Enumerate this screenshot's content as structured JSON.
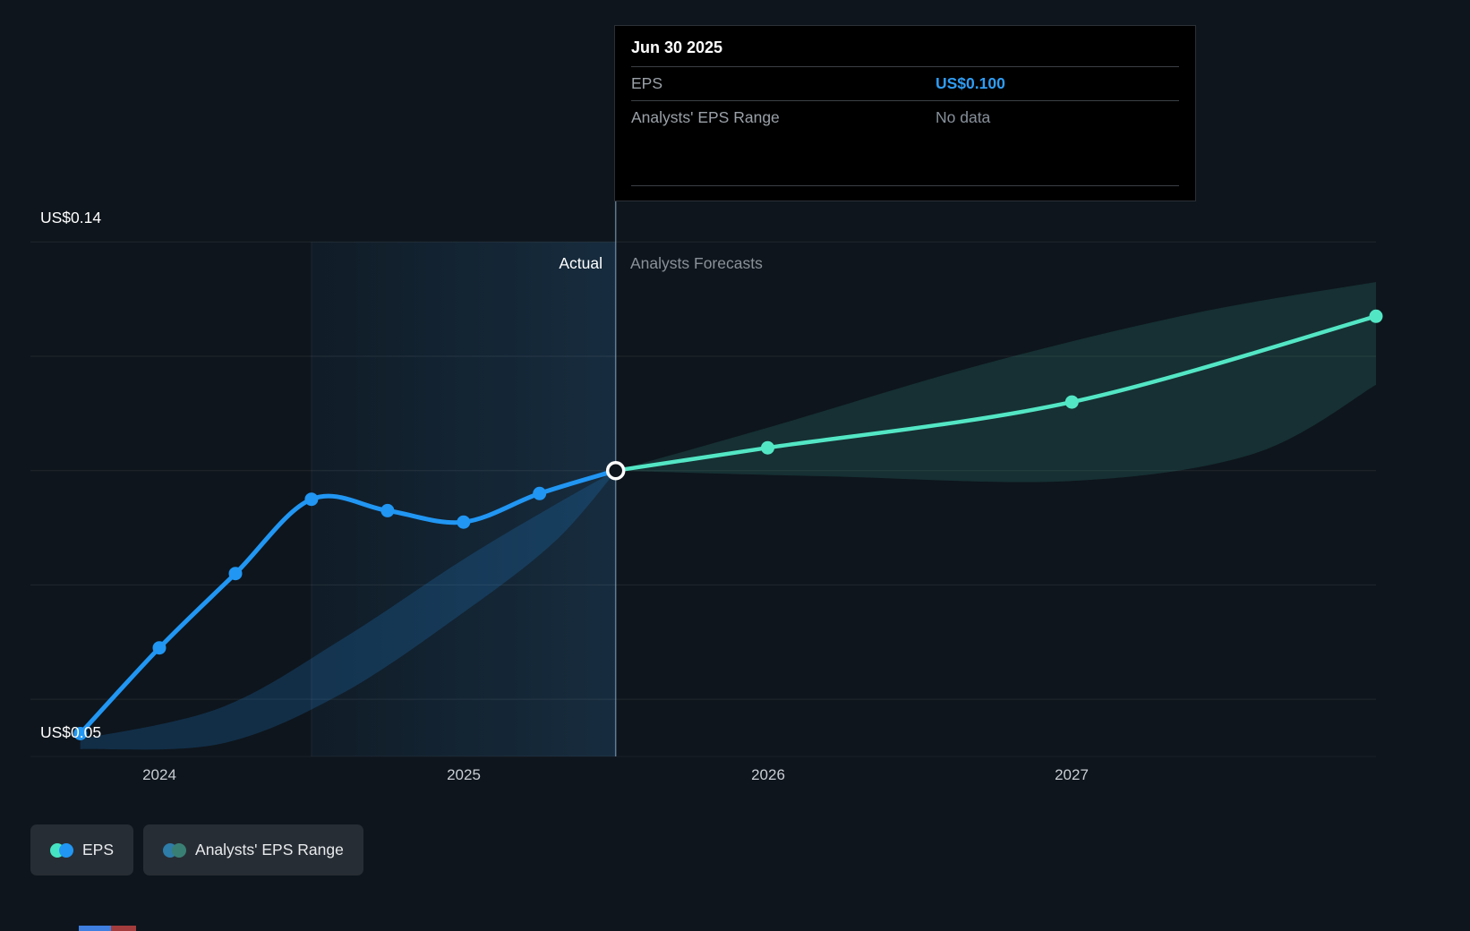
{
  "tooltip": {
    "date": "Jun 30 2025",
    "rows": [
      {
        "label": "EPS",
        "value": "US$0.100",
        "value_color": "#2f9df4"
      },
      {
        "label": "Analysts' EPS Range",
        "value": "No data",
        "value_color": "#87909a"
      }
    ]
  },
  "legend": {
    "items": [
      {
        "label": "EPS",
        "dot_left": "#46e3c3",
        "dot_right": "#2196f3"
      },
      {
        "label": "Analysts' EPS Range",
        "dot_left": "#2e7ca8",
        "dot_right": "#3a7f74"
      }
    ]
  },
  "chart_data": {
    "type": "line",
    "title": "",
    "xlabel": "",
    "ylabel": "",
    "x_unit": "year (quarterly points)",
    "xlim": [
      2023.576,
      2028.0
    ],
    "ylim": [
      0.05,
      0.146
    ],
    "y_ticks": [
      0.06,
      0.08,
      0.1,
      0.12,
      0.14
    ],
    "y_axis_labels": [
      {
        "value": 0.14,
        "text": "US$0.14"
      },
      {
        "value": 0.05,
        "text": "US$0.05"
      }
    ],
    "x_ticks": [
      {
        "value": 2024,
        "text": "2024"
      },
      {
        "value": 2025,
        "text": "2025"
      },
      {
        "value": 2026,
        "text": "2026"
      },
      {
        "value": 2027,
        "text": "2027"
      }
    ],
    "divider_year": 2025.5,
    "highlight_span_years": [
      2024.5,
      2025.5
    ],
    "annotations": {
      "actual": "Actual",
      "forecasts": "Analysts Forecasts"
    },
    "grid": true,
    "legend_position": "bottom-left",
    "series": [
      {
        "name": "EPS (actual)",
        "color": "#2196f3",
        "points": [
          [
            2023.74,
            0.054
          ],
          [
            2024.0,
            0.069
          ],
          [
            2024.25,
            0.082
          ],
          [
            2024.5,
            0.095
          ],
          [
            2024.75,
            0.093
          ],
          [
            2025.0,
            0.091
          ],
          [
            2025.25,
            0.096
          ],
          [
            2025.5,
            0.1
          ]
        ]
      },
      {
        "name": "EPS (analysts forecast)",
        "color": "#53e6c5",
        "points": [
          [
            2025.5,
            0.1
          ],
          [
            2026.0,
            0.104
          ],
          [
            2027.0,
            0.112
          ],
          [
            2028.0,
            0.127
          ]
        ]
      }
    ],
    "bands": [
      {
        "name": "analysts-range-past",
        "fill": "rgba(32,125,200,0.25)",
        "top": [
          [
            2023.74,
            0.053
          ],
          [
            2024.2,
            0.0585
          ],
          [
            2024.6,
            0.0705
          ],
          [
            2025.0,
            0.0845
          ],
          [
            2025.3,
            0.094
          ],
          [
            2025.5,
            0.1
          ]
        ],
        "bottom": [
          [
            2023.74,
            0.0513
          ],
          [
            2024.2,
            0.0522
          ],
          [
            2024.6,
            0.061
          ],
          [
            2025.0,
            0.0752
          ],
          [
            2025.3,
            0.0876
          ],
          [
            2025.5,
            0.0998
          ]
        ]
      },
      {
        "name": "analysts-range-forecast",
        "fill": "rgba(70,195,175,0.16)",
        "top": [
          [
            2025.5,
            0.1
          ],
          [
            2026.0,
            0.1075
          ],
          [
            2026.7,
            0.1185
          ],
          [
            2027.4,
            0.1275
          ],
          [
            2028.0,
            0.133
          ]
        ],
        "bottom": [
          [
            2025.5,
            0.1
          ],
          [
            2026.2,
            0.099
          ],
          [
            2027.0,
            0.0982
          ],
          [
            2027.6,
            0.103
          ],
          [
            2028.0,
            0.115
          ]
        ]
      }
    ],
    "current_marker": {
      "year": 2025.5,
      "value": 0.1
    }
  },
  "artifact": {
    "segments": [
      {
        "color": "#3f7fe0",
        "width": 36
      },
      {
        "color": "#a33c3c",
        "width": 28
      }
    ]
  }
}
